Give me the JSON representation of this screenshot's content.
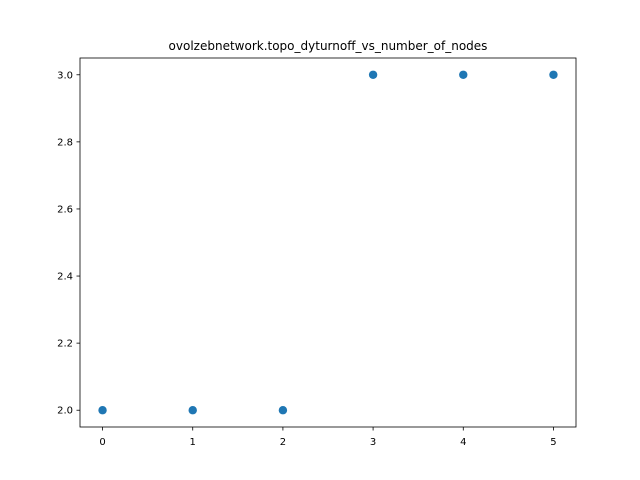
{
  "chart_data": {
    "type": "scatter",
    "title": "ovolzebnetwork.topo_dyturnoff_vs_number_of_nodes",
    "xlabel": "",
    "ylabel": "",
    "x": [
      0,
      1,
      2,
      3,
      4,
      5
    ],
    "y": [
      2.0,
      2.0,
      2.0,
      3.0,
      3.0,
      3.0
    ],
    "xlim": [
      -0.25,
      5.25
    ],
    "ylim": [
      1.95,
      3.05
    ],
    "x_ticks": [
      0,
      1,
      2,
      3,
      4,
      5
    ],
    "x_tick_labels": [
      "0",
      "1",
      "2",
      "3",
      "4",
      "5"
    ],
    "y_ticks": [
      2.0,
      2.2,
      2.4,
      2.6,
      2.8,
      3.0
    ],
    "y_tick_labels": [
      "2.0",
      "2.2",
      "2.4",
      "2.6",
      "2.8",
      "3.0"
    ],
    "grid": false,
    "legend": "none",
    "marker_color": "#1f77b4"
  }
}
